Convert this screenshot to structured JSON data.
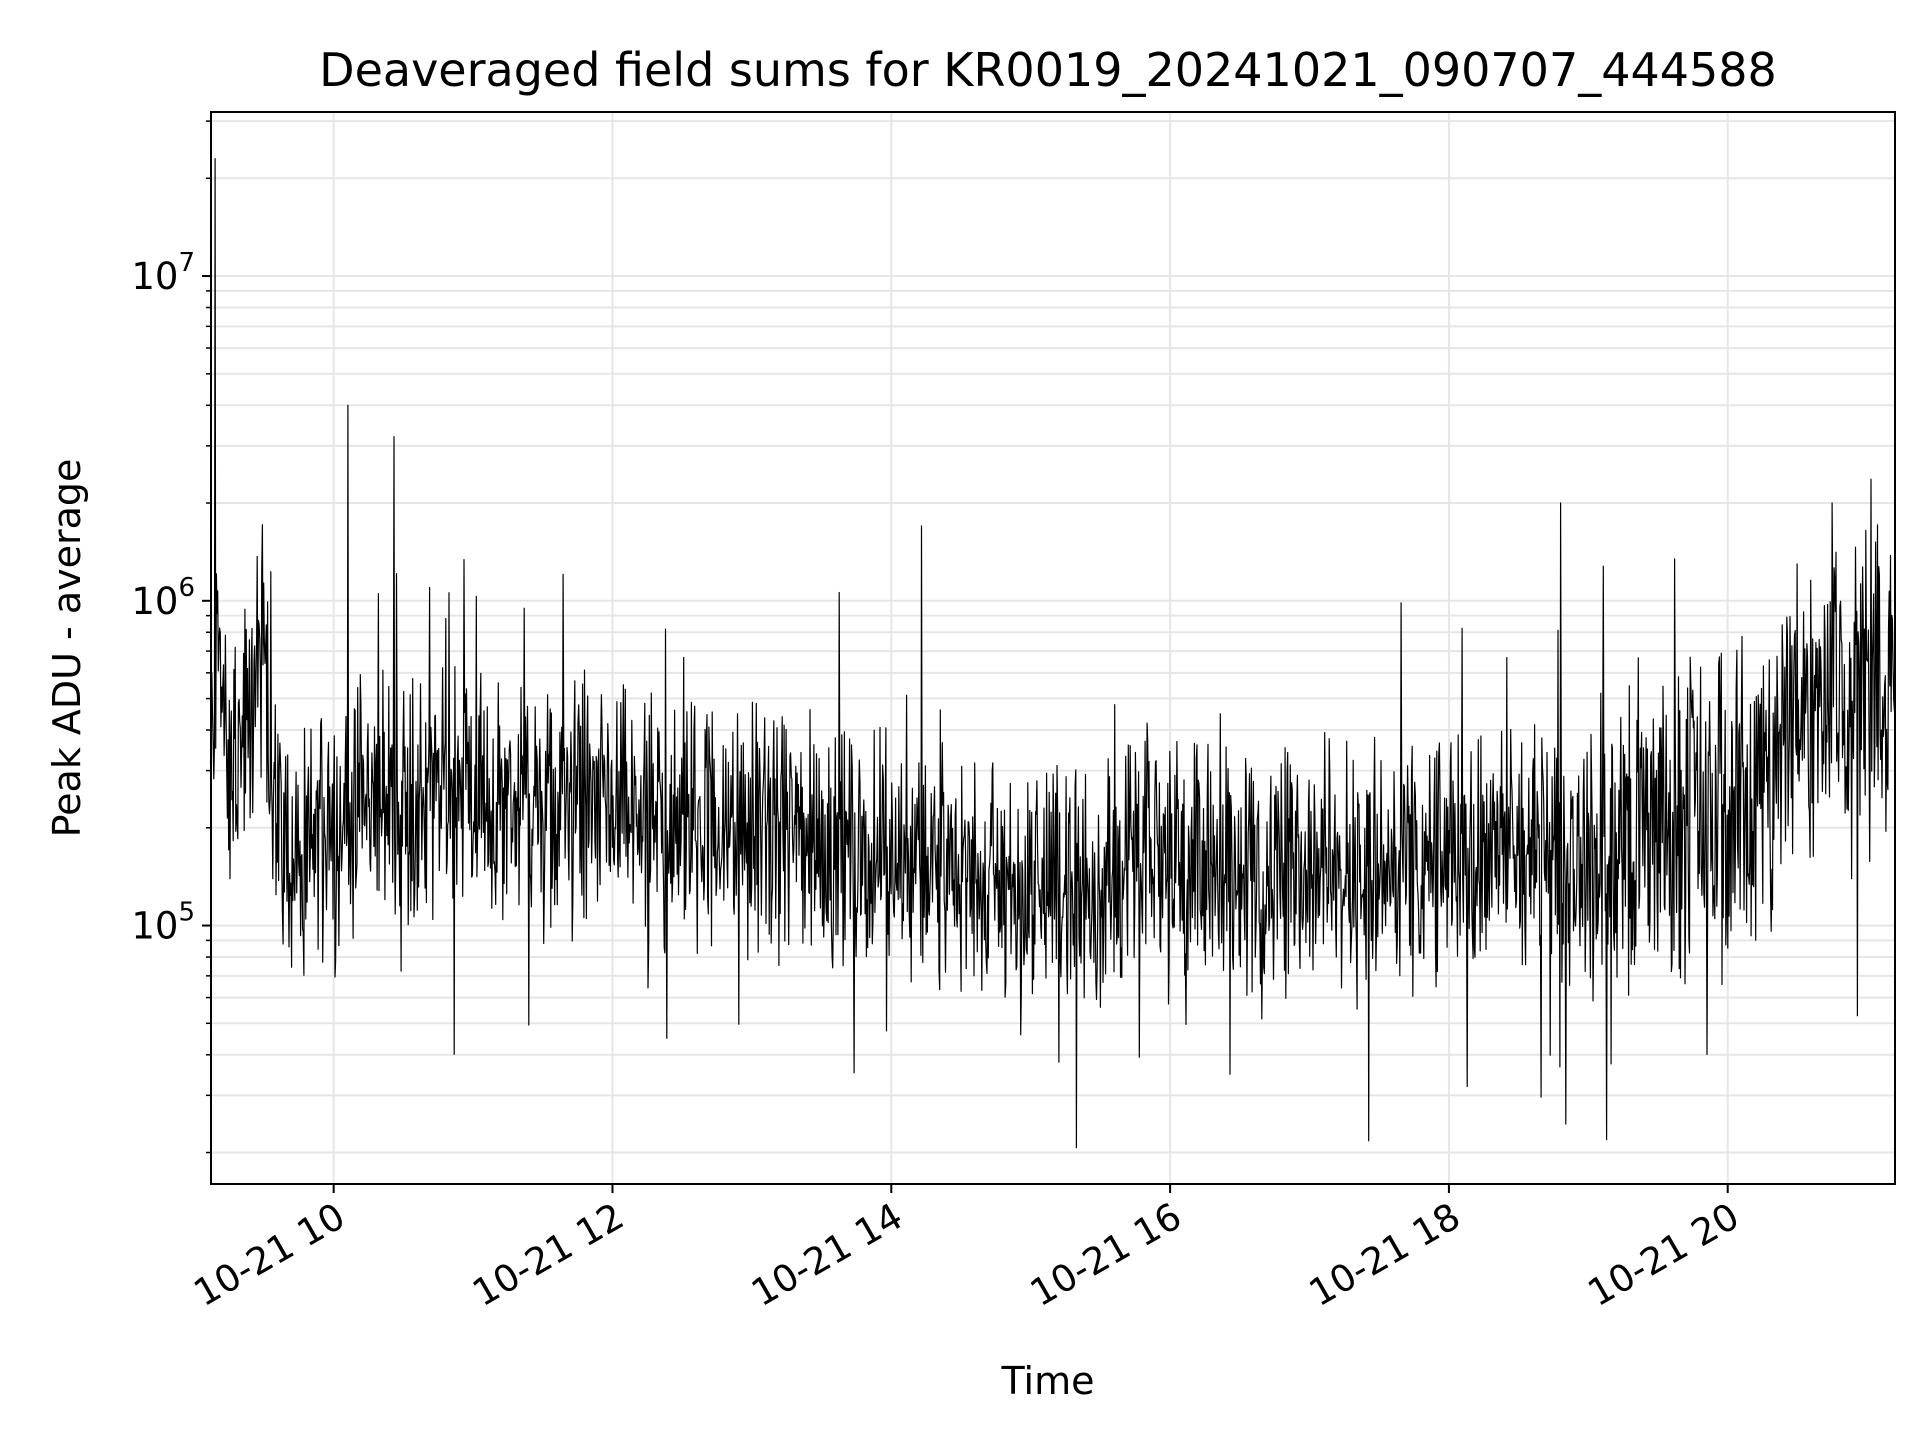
{
  "chart_data": {
    "type": "line",
    "title": "Deaveraged field sums for KR0019_20241021_090707_444588",
    "xlabel": "Time",
    "ylabel": "Peak ADU - average",
    "y_scale": "log",
    "x_tick_labels": [
      "10-21 10",
      "10-21 12",
      "10-21 14",
      "10-21 16",
      "10-21 18",
      "10-21 20"
    ],
    "x_ticks_hours": [
      10,
      12,
      14,
      16,
      18,
      20
    ],
    "xlim_hours": [
      9.12,
      21.2
    ],
    "ylim": [
      16000,
      32000000
    ],
    "y_major_ticks": [
      {
        "value": 100000,
        "base": "10",
        "exp": "5"
      },
      {
        "value": 1000000,
        "base": "10",
        "exp": "6"
      },
      {
        "value": 10000000,
        "base": "10",
        "exp": "7"
      }
    ],
    "grid": true,
    "line_color": "#000000",
    "grid_color": "#e6e6e6",
    "series": [
      {
        "points": [
          [
            "2024-10-21 09:07",
            300000
          ],
          [
            "2024-10-21 09:09",
            23000000
          ],
          [
            "2024-10-21 09:10",
            800000
          ],
          [
            "2024-10-21 09:15",
            260000
          ],
          [
            "2024-10-21 09:25",
            450000
          ],
          [
            "2024-10-21 09:30",
            850000
          ],
          [
            "2024-10-21 09:35",
            220000
          ],
          [
            "2024-10-21 09:45",
            150000
          ],
          [
            "2024-10-21 09:55",
            200000
          ],
          [
            "2024-10-21 10:06",
            4000000
          ],
          [
            "2024-10-21 10:10",
            230000
          ],
          [
            "2024-10-21 10:26",
            3200000
          ],
          [
            "2024-10-21 10:30",
            250000
          ],
          [
            "2024-10-21 11:00",
            260000
          ],
          [
            "2024-10-21 11:30",
            230000
          ],
          [
            "2024-10-21 12:00",
            220000
          ],
          [
            "2024-10-21 12:30",
            210000
          ],
          [
            "2024-10-21 13:00",
            190000
          ],
          [
            "2024-10-21 13:30",
            180000
          ],
          [
            "2024-10-21 14:00",
            170000
          ],
          [
            "2024-10-21 14:13",
            1700000
          ],
          [
            "2024-10-21 14:30",
            140000
          ],
          [
            "2024-10-21 15:00",
            130000
          ],
          [
            "2024-10-21 15:30",
            140000
          ],
          [
            "2024-10-21 16:00",
            170000
          ],
          [
            "2024-10-21 16:30",
            150000
          ],
          [
            "2024-10-21 17:00",
            150000
          ],
          [
            "2024-10-21 17:30",
            150000
          ],
          [
            "2024-10-21 18:00",
            160000
          ],
          [
            "2024-10-21 18:30",
            170000
          ],
          [
            "2024-10-21 18:48",
            2000000
          ],
          [
            "2024-10-21 19:00",
            150000
          ],
          [
            "2024-10-21 19:30",
            200000
          ],
          [
            "2024-10-21 20:00",
            200000
          ],
          [
            "2024-10-21 20:20",
            300000
          ],
          [
            "2024-10-21 20:30",
            500000
          ],
          [
            "2024-10-21 20:45",
            2000000
          ],
          [
            "2024-10-21 21:00",
            500000
          ],
          [
            "2024-10-21 21:12",
            550000
          ]
        ]
      }
    ]
  }
}
